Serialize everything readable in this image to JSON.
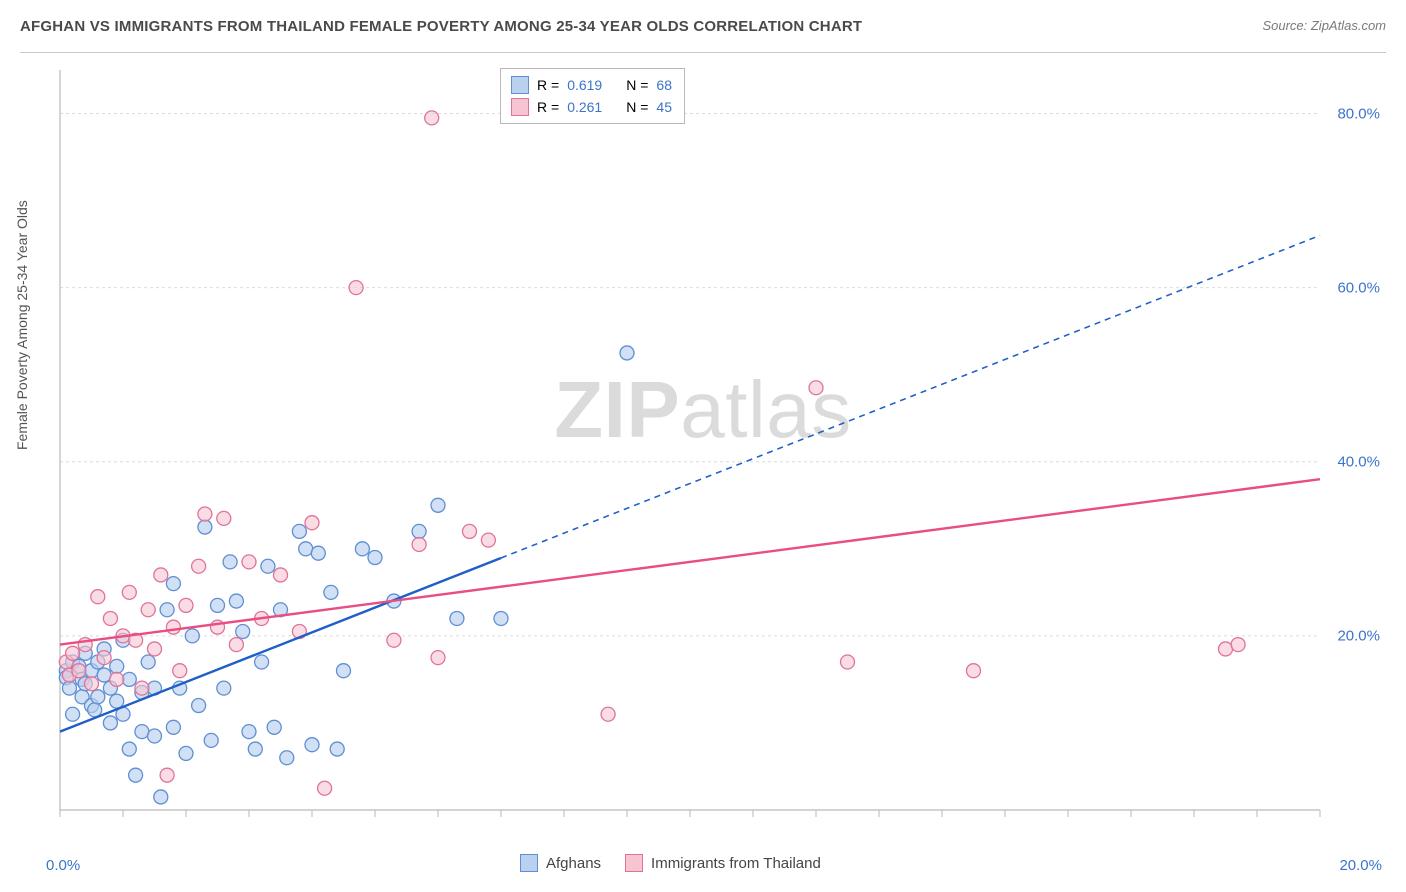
{
  "title": "AFGHAN VS IMMIGRANTS FROM THAILAND FEMALE POVERTY AMONG 25-34 YEAR OLDS CORRELATION CHART",
  "source": "Source: ZipAtlas.com",
  "ylabel": "Female Poverty Among 25-34 Year Olds",
  "watermark_a": "ZIP",
  "watermark_b": "atlas",
  "chart": {
    "type": "scatter",
    "background_color": "#ffffff",
    "grid_color": "#dcdcdc",
    "axis_color": "#b9b9b9",
    "xlim": [
      0,
      20
    ],
    "ylim": [
      0,
      85
    ],
    "x_tick0_label": "0.0%",
    "x_tickmax_label": "20.0%",
    "x_minor_ticks": [
      0,
      1,
      2,
      3,
      4,
      5,
      6,
      7,
      8,
      9,
      10,
      11,
      12,
      13,
      14,
      15,
      16,
      17,
      18,
      19,
      20
    ],
    "y_ticks": [
      20,
      40,
      60,
      80
    ],
    "y_tick_labels": [
      "20.0%",
      "40.0%",
      "60.0%",
      "80.0%"
    ],
    "tick_label_color": "#3b74c9",
    "marker_radius": 7,
    "marker_stroke_width": 1.3,
    "series": [
      {
        "name": "Afghans",
        "fill": "#b9d0ee",
        "stroke": "#5f8fd4",
        "fill_opacity": 0.65,
        "R": "0.619",
        "N": "68",
        "trend": {
          "color": "#1f5fc6",
          "width": 2.4,
          "dash_after_x": 7.0,
          "y0": 9.0,
          "y20": 66.0
        },
        "points": [
          [
            0.1,
            16.0
          ],
          [
            0.1,
            15.2
          ],
          [
            0.15,
            14.0
          ],
          [
            0.2,
            17.0
          ],
          [
            0.2,
            11.0
          ],
          [
            0.3,
            16.5
          ],
          [
            0.35,
            15.0
          ],
          [
            0.35,
            13.0
          ],
          [
            0.4,
            18.0
          ],
          [
            0.4,
            14.5
          ],
          [
            0.5,
            16.0
          ],
          [
            0.5,
            12.0
          ],
          [
            0.55,
            11.5
          ],
          [
            0.6,
            17.0
          ],
          [
            0.6,
            13.0
          ],
          [
            0.7,
            15.5
          ],
          [
            0.7,
            18.5
          ],
          [
            0.8,
            14.0
          ],
          [
            0.8,
            10.0
          ],
          [
            0.9,
            16.5
          ],
          [
            0.9,
            12.5
          ],
          [
            1.0,
            19.5
          ],
          [
            1.0,
            11.0
          ],
          [
            1.1,
            15.0
          ],
          [
            1.1,
            7.0
          ],
          [
            1.2,
            4.0
          ],
          [
            1.3,
            9.0
          ],
          [
            1.3,
            13.5
          ],
          [
            1.4,
            17.0
          ],
          [
            1.5,
            8.5
          ],
          [
            1.5,
            14.0
          ],
          [
            1.6,
            1.5
          ],
          [
            1.7,
            23.0
          ],
          [
            1.8,
            9.5
          ],
          [
            1.8,
            26.0
          ],
          [
            1.9,
            14.0
          ],
          [
            2.0,
            6.5
          ],
          [
            2.1,
            20.0
          ],
          [
            2.2,
            12.0
          ],
          [
            2.3,
            32.5
          ],
          [
            2.4,
            8.0
          ],
          [
            2.5,
            23.5
          ],
          [
            2.6,
            14.0
          ],
          [
            2.7,
            28.5
          ],
          [
            2.8,
            24.0
          ],
          [
            2.9,
            20.5
          ],
          [
            3.0,
            9.0
          ],
          [
            3.1,
            7.0
          ],
          [
            3.2,
            17.0
          ],
          [
            3.3,
            28.0
          ],
          [
            3.4,
            9.5
          ],
          [
            3.5,
            23.0
          ],
          [
            3.6,
            6.0
          ],
          [
            3.8,
            32.0
          ],
          [
            3.9,
            30.0
          ],
          [
            4.0,
            7.5
          ],
          [
            4.1,
            29.5
          ],
          [
            4.3,
            25.0
          ],
          [
            4.4,
            7.0
          ],
          [
            4.5,
            16.0
          ],
          [
            4.8,
            30.0
          ],
          [
            5.0,
            29.0
          ],
          [
            5.3,
            24.0
          ],
          [
            5.7,
            32.0
          ],
          [
            6.0,
            35.0
          ],
          [
            6.3,
            22.0
          ],
          [
            7.0,
            22.0
          ],
          [
            9.0,
            52.5
          ]
        ]
      },
      {
        "name": "Immigrants from Thailand",
        "fill": "#f7c4d2",
        "stroke": "#e17398",
        "fill_opacity": 0.6,
        "R": "0.261",
        "N": "45",
        "trend": {
          "color": "#e84e82",
          "width": 2.4,
          "y0": 19.0,
          "y20": 38.0
        },
        "points": [
          [
            0.1,
            17.0
          ],
          [
            0.15,
            15.5
          ],
          [
            0.2,
            18.0
          ],
          [
            0.3,
            16.0
          ],
          [
            0.4,
            19.0
          ],
          [
            0.5,
            14.5
          ],
          [
            0.6,
            24.5
          ],
          [
            0.7,
            17.5
          ],
          [
            0.8,
            22.0
          ],
          [
            0.9,
            15.0
          ],
          [
            1.0,
            20.0
          ],
          [
            1.1,
            25.0
          ],
          [
            1.2,
            19.5
          ],
          [
            1.3,
            14.0
          ],
          [
            1.4,
            23.0
          ],
          [
            1.5,
            18.5
          ],
          [
            1.6,
            27.0
          ],
          [
            1.7,
            4.0
          ],
          [
            1.8,
            21.0
          ],
          [
            1.9,
            16.0
          ],
          [
            2.0,
            23.5
          ],
          [
            2.2,
            28.0
          ],
          [
            2.3,
            34.0
          ],
          [
            2.5,
            21.0
          ],
          [
            2.6,
            33.5
          ],
          [
            2.8,
            19.0
          ],
          [
            3.0,
            28.5
          ],
          [
            3.2,
            22.0
          ],
          [
            3.5,
            27.0
          ],
          [
            3.8,
            20.5
          ],
          [
            4.0,
            33.0
          ],
          [
            4.2,
            2.5
          ],
          [
            4.7,
            60.0
          ],
          [
            5.3,
            19.5
          ],
          [
            5.7,
            30.5
          ],
          [
            5.9,
            79.5
          ],
          [
            6.0,
            17.5
          ],
          [
            6.5,
            32.0
          ],
          [
            6.8,
            31.0
          ],
          [
            8.7,
            11.0
          ],
          [
            12.0,
            48.5
          ],
          [
            12.5,
            17.0
          ],
          [
            14.5,
            16.0
          ],
          [
            18.5,
            18.5
          ],
          [
            18.7,
            19.0
          ]
        ]
      }
    ]
  },
  "legend_top": {
    "r_label": "R =",
    "n_label": "N ="
  },
  "legend_bottom_labels": [
    "Afghans",
    "Immigrants from Thailand"
  ]
}
